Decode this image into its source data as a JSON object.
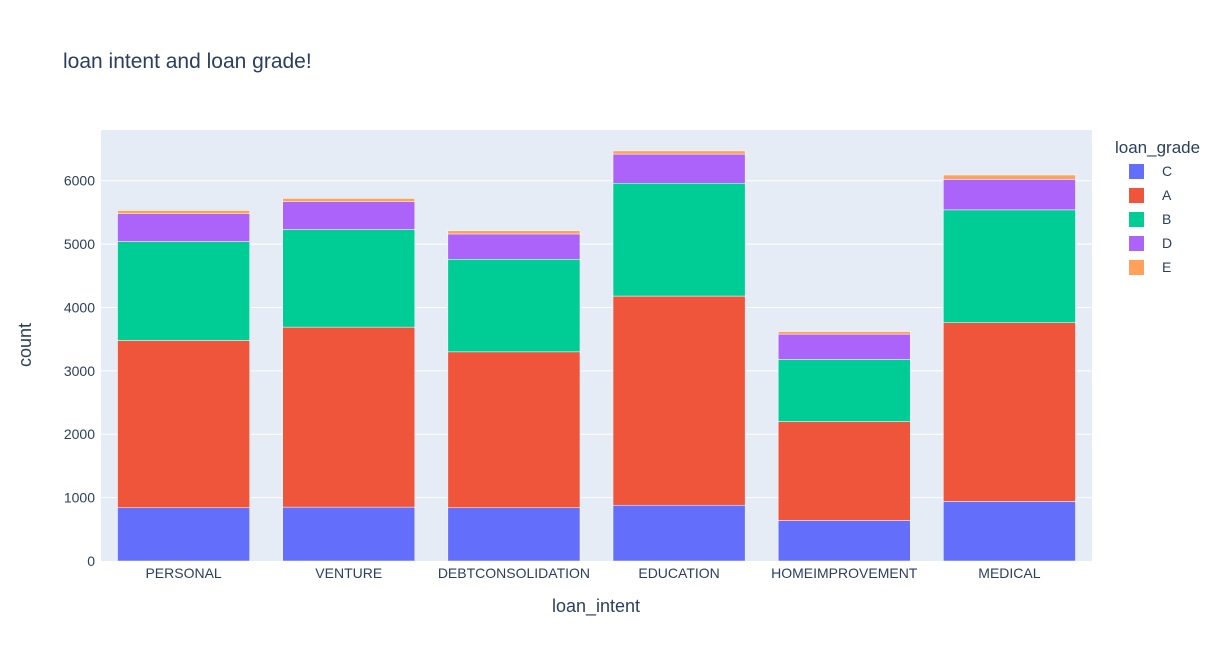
{
  "chart_data": {
    "type": "bar",
    "barmode": "stack",
    "title": "loan intent and loan grade!",
    "xlabel": "loan_intent",
    "ylabel": "count",
    "ylim": [
      0,
      6800
    ],
    "yticks": [
      0,
      1000,
      2000,
      3000,
      4000,
      5000,
      6000
    ],
    "grid": true,
    "legend_title": "loan_grade",
    "legend_position": "top-right",
    "categories": [
      "PERSONAL",
      "VENTURE",
      "DEBTCONSOLIDATION",
      "EDUCATION",
      "HOMEIMPROVEMENT",
      "MEDICAL"
    ],
    "series": [
      {
        "name": "C",
        "color": "#636efa",
        "values": [
          840,
          850,
          840,
          880,
          640,
          940
        ]
      },
      {
        "name": "A",
        "color": "#ef553b",
        "values": [
          2640,
          2840,
          2460,
          3300,
          1560,
          2820
        ]
      },
      {
        "name": "B",
        "color": "#00cc96",
        "values": [
          1560,
          1540,
          1460,
          1780,
          980,
          1780
        ]
      },
      {
        "name": "D",
        "color": "#ab63fa",
        "values": [
          440,
          440,
          400,
          460,
          400,
          480
        ]
      },
      {
        "name": "E",
        "color": "#ffa15a",
        "values": [
          50,
          50,
          50,
          50,
          40,
          70
        ]
      }
    ]
  }
}
